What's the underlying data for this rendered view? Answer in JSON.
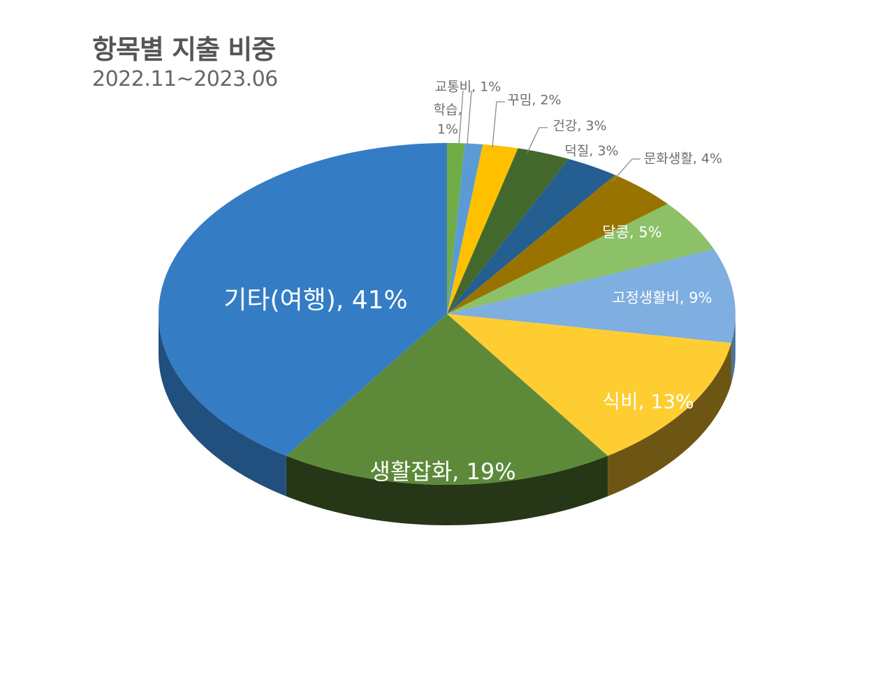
{
  "title": "항목별 지출 비중",
  "subtitle": "2022.11~2023.06",
  "chart_data": {
    "type": "pie",
    "title": "항목별 지출 비중",
    "subtitle": "2022.11~2023.06",
    "style": "3d",
    "start": "12 o'clock",
    "direction": "clockwise",
    "slices": [
      {
        "label": "학습",
        "value": 1,
        "display": "1%",
        "color": "#70ad47",
        "side": "#3f6127",
        "label_pos": "outside"
      },
      {
        "label": "교통비",
        "value": 1,
        "display": "1%",
        "color": "#5b9bd5",
        "side": "#2f5b85",
        "label_pos": "outside"
      },
      {
        "label": "꾸밈",
        "value": 2,
        "display": "2%",
        "color": "#ffc000",
        "side": "#8a6a00",
        "label_pos": "outside"
      },
      {
        "label": "건강",
        "value": 3,
        "display": "3%",
        "color": "#43682b",
        "side": "#24381a",
        "label_pos": "outside"
      },
      {
        "label": "덕질",
        "value": 3,
        "display": "3%",
        "color": "#255e91",
        "side": "#163a5a",
        "label_pos": "outside"
      },
      {
        "label": "문화생활",
        "value": 4,
        "display": "4%",
        "color": "#997300",
        "side": "#5a4400",
        "label_pos": "outside"
      },
      {
        "label": "달콩",
        "value": 5,
        "display": "5%",
        "color": "#8cc168",
        "side": "#5a7d43",
        "label_pos": "inside"
      },
      {
        "label": "고정생활비",
        "value": 9,
        "display": "9%",
        "color": "#7faee0",
        "side": "#4d7399",
        "label_pos": "inside"
      },
      {
        "label": "식비",
        "value": 13,
        "display": "13%",
        "color": "#fecd32",
        "side": "#6d5514",
        "label_pos": "inside"
      },
      {
        "label": "생활잡화",
        "value": 19,
        "display": "19%",
        "color": "#5d8a39",
        "side": "#253716",
        "label_pos": "inside"
      },
      {
        "label": "기타(여행)",
        "value": 41,
        "display": "41%",
        "color": "#347dc5",
        "side": "#214f7e",
        "label_pos": "inside"
      }
    ]
  }
}
